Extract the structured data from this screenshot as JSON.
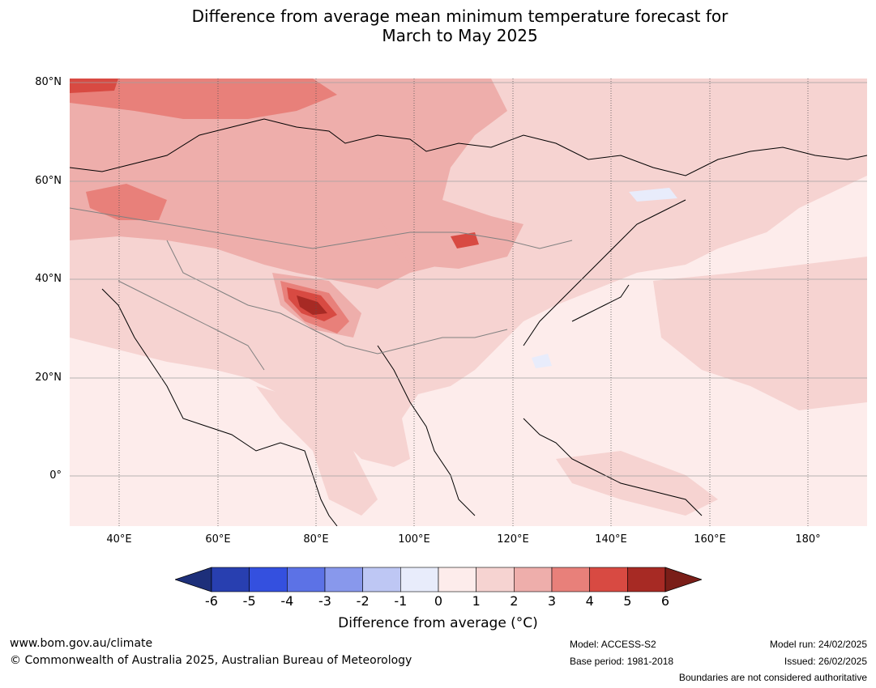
{
  "title_line1": "Difference from average mean minimum temperature forecast for",
  "title_line2": "March to May 2025",
  "lat_labels": [
    "80°N",
    "60°N",
    "40°N",
    "20°N",
    "0°"
  ],
  "lon_labels": [
    "40°E",
    "60°E",
    "80°E",
    "100°E",
    "120°E",
    "140°E",
    "160°E",
    "180°"
  ],
  "colorbar": {
    "ticks": [
      "-6",
      "-5",
      "-4",
      "-3",
      "-2",
      "-1",
      "0",
      "1",
      "2",
      "3",
      "4",
      "5",
      "6"
    ],
    "colors": [
      "#1d2f7a",
      "#283fb0",
      "#3450df",
      "#5c72e6",
      "#8898ec",
      "#bec7f4",
      "#e8ecfb",
      "#fdeceb",
      "#f6d3d1",
      "#eeaeab",
      "#e8807a",
      "#d84a42",
      "#a72a24",
      "#7a1e18"
    ],
    "label": "Difference from average (°C)"
  },
  "footer": {
    "website": "www.bom.gov.au/climate",
    "copyright": "© Commonwealth of Australia 2025, Australian Bureau of Meteorology",
    "model": "Model: ACCESS-S2",
    "base_period": "Base period: 1981-2018",
    "model_run": "Model run: 24/02/2025",
    "issued": "Issued: 26/02/2025",
    "boundaries": "Boundaries are not considered authoritative"
  }
}
